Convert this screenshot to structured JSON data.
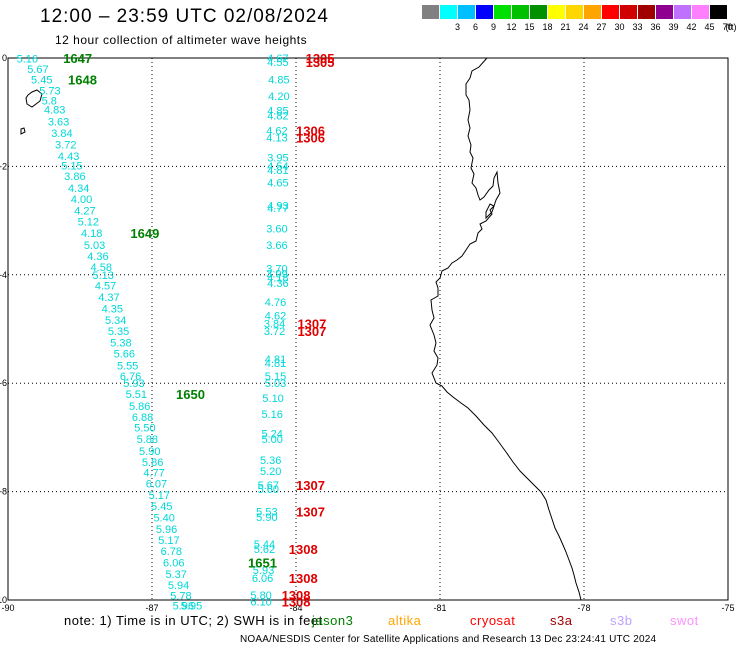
{
  "header": {
    "title": "12:00 – 23:59 UTC 02/08/2024",
    "subtitle": "12 hour collection of altimeter wave heights"
  },
  "colorbar": {
    "unit": "(ft)",
    "bins": [
      {
        "label": "",
        "color": "#808080"
      },
      {
        "label": "3",
        "color": "#00ffff"
      },
      {
        "label": "6",
        "color": "#00bfff"
      },
      {
        "label": "9",
        "color": "#0000ff"
      },
      {
        "label": "12",
        "color": "#00e000"
      },
      {
        "label": "15",
        "color": "#00c000"
      },
      {
        "label": "18",
        "color": "#009000"
      },
      {
        "label": "21",
        "color": "#ffff00"
      },
      {
        "label": "24",
        "color": "#ffd700"
      },
      {
        "label": "27",
        "color": "#ffa500"
      },
      {
        "label": "30",
        "color": "#ff0000"
      },
      {
        "label": "33",
        "color": "#d00000"
      },
      {
        "label": "36",
        "color": "#a00000"
      },
      {
        "label": "39",
        "color": "#900090"
      },
      {
        "label": "42",
        "color": "#c070ff"
      },
      {
        "label": "45",
        "color": "#ff80ff"
      },
      {
        "label": "70",
        "color": "#000000"
      }
    ]
  },
  "map": {
    "lon_ticks": [
      "-90",
      "-87",
      "-84",
      "-81",
      "-78",
      "-75"
    ],
    "lat_ticks": [
      "0",
      "-2",
      "-4",
      "-6",
      "-8",
      "-10"
    ],
    "lon_range": [
      -90,
      -75
    ],
    "lat_range": [
      -10,
      0
    ],
    "colors": {
      "wave_text": "#00d8d8",
      "time_labels_green": "#008000",
      "time_labels_red": "#e00000",
      "coast": "#000000"
    }
  },
  "tracks": [
    {
      "name": "west",
      "points": [
        {
          "lat": -0.01,
          "lon": -89.82,
          "value": "5.16"
        },
        {
          "lat": -0.2,
          "lon": -89.6,
          "value": "5.67"
        },
        {
          "lat": -0.4,
          "lon": -89.52,
          "value": "5.45"
        },
        {
          "lat": -0.6,
          "lon": -89.35,
          "value": "5.73"
        },
        {
          "lat": -0.78,
          "lon": -89.3,
          "value": "5.8"
        },
        {
          "lat": -0.95,
          "lon": -89.25,
          "value": "4.83"
        },
        {
          "lat": -1.17,
          "lon": -89.17,
          "value": "3.63"
        },
        {
          "lat": -1.38,
          "lon": -89.1,
          "value": "3.84"
        },
        {
          "lat": -1.6,
          "lon": -89.02,
          "value": "3.72"
        },
        {
          "lat": -1.81,
          "lon": -88.96,
          "value": "4.43"
        },
        {
          "lat": -1.98,
          "lon": -88.89,
          "value": "5.15"
        },
        {
          "lat": -2.18,
          "lon": -88.83,
          "value": "3.86"
        },
        {
          "lat": -2.4,
          "lon": -88.75,
          "value": "4.34"
        },
        {
          "lat": -2.6,
          "lon": -88.69,
          "value": "4.00"
        },
        {
          "lat": -2.81,
          "lon": -88.62,
          "value": "4.27"
        },
        {
          "lat": -3.02,
          "lon": -88.55,
          "value": "5.12"
        },
        {
          "lat": -3.23,
          "lon": -88.48,
          "value": "4.18"
        },
        {
          "lat": -3.45,
          "lon": -88.42,
          "value": "5.03"
        },
        {
          "lat": -3.65,
          "lon": -88.35,
          "value": "4.36"
        },
        {
          "lat": -3.86,
          "lon": -88.28,
          "value": "4.58"
        },
        {
          "lat": -4.0,
          "lon": -88.24,
          "value": "5.13"
        },
        {
          "lat": -4.2,
          "lon": -88.19,
          "value": "4.57"
        },
        {
          "lat": -4.41,
          "lon": -88.12,
          "value": "4.37"
        },
        {
          "lat": -4.62,
          "lon": -88.05,
          "value": "4.35"
        },
        {
          "lat": -4.83,
          "lon": -87.98,
          "value": "5.34"
        },
        {
          "lat": -5.04,
          "lon": -87.92,
          "value": "5.35"
        },
        {
          "lat": -5.25,
          "lon": -87.87,
          "value": "5.38"
        },
        {
          "lat": -5.45,
          "lon": -87.8,
          "value": "5.66"
        },
        {
          "lat": -5.67,
          "lon": -87.73,
          "value": "5.55"
        },
        {
          "lat": -5.87,
          "lon": -87.67,
          "value": "6.76"
        },
        {
          "lat": -6.0,
          "lon": -87.6,
          "value": "5.93"
        },
        {
          "lat": -6.2,
          "lon": -87.55,
          "value": "5.51"
        },
        {
          "lat": -6.42,
          "lon": -87.48,
          "value": "5.86"
        },
        {
          "lat": -6.62,
          "lon": -87.42,
          "value": "6.88"
        },
        {
          "lat": -6.82,
          "lon": -87.37,
          "value": "5.50"
        },
        {
          "lat": -7.03,
          "lon": -87.32,
          "value": "5.88"
        },
        {
          "lat": -7.25,
          "lon": -87.27,
          "value": "5.90"
        },
        {
          "lat": -7.45,
          "lon": -87.21,
          "value": "5.86"
        },
        {
          "lat": -7.65,
          "lon": -87.18,
          "value": "4.77"
        },
        {
          "lat": -7.85,
          "lon": -87.13,
          "value": "6.07"
        },
        {
          "lat": -8.06,
          "lon": -87.07,
          "value": "5.17"
        },
        {
          "lat": -8.27,
          "lon": -87.02,
          "value": "5.45"
        },
        {
          "lat": -8.48,
          "lon": -86.97,
          "value": "5.40"
        },
        {
          "lat": -8.69,
          "lon": -86.92,
          "value": "5.96"
        },
        {
          "lat": -8.89,
          "lon": -86.87,
          "value": "5.17"
        },
        {
          "lat": -9.1,
          "lon": -86.82,
          "value": "6.78"
        },
        {
          "lat": -9.31,
          "lon": -86.77,
          "value": "6.06"
        },
        {
          "lat": -9.52,
          "lon": -86.72,
          "value": "5.37"
        },
        {
          "lat": -9.72,
          "lon": -86.67,
          "value": "5.94"
        },
        {
          "lat": -9.92,
          "lon": -86.62,
          "value": "5.78"
        },
        {
          "lat": -10.1,
          "lon": -86.57,
          "value": "5.96"
        },
        {
          "lat": -10.1,
          "lon": -86.4,
          "value": "5.95"
        }
      ]
    },
    {
      "name": "east",
      "points": [
        {
          "lat": -0.0,
          "lon": -84.6,
          "value": "4.67"
        },
        {
          "lat": -0.07,
          "lon": -84.6,
          "value": "4.55"
        },
        {
          "lat": -0.4,
          "lon": -84.58,
          "value": "4.85"
        },
        {
          "lat": -0.7,
          "lon": -84.58,
          "value": "4.20"
        },
        {
          "lat": -0.97,
          "lon": -84.6,
          "value": "4.85"
        },
        {
          "lat": -1.06,
          "lon": -84.6,
          "value": "4.82"
        },
        {
          "lat": -1.34,
          "lon": -84.62,
          "value": "4.62"
        },
        {
          "lat": -1.47,
          "lon": -84.62,
          "value": "4.13"
        },
        {
          "lat": -1.84,
          "lon": -84.6,
          "value": "3.95"
        },
        {
          "lat": -1.99,
          "lon": -84.6,
          "value": "4.54"
        },
        {
          "lat": -2.07,
          "lon": -84.6,
          "value": "4.81"
        },
        {
          "lat": -2.3,
          "lon": -84.6,
          "value": "4.65"
        },
        {
          "lat": -2.72,
          "lon": -84.6,
          "value": "4.93"
        },
        {
          "lat": -2.77,
          "lon": -84.6,
          "value": "4.77"
        },
        {
          "lat": -3.15,
          "lon": -84.62,
          "value": "3.60"
        },
        {
          "lat": -3.45,
          "lon": -84.62,
          "value": "3.66"
        },
        {
          "lat": -3.88,
          "lon": -84.62,
          "value": "3.70"
        },
        {
          "lat": -3.98,
          "lon": -84.62,
          "value": "3.99"
        },
        {
          "lat": -4.05,
          "lon": -84.6,
          "value": "4.18"
        },
        {
          "lat": -4.15,
          "lon": -84.6,
          "value": "4.36"
        },
        {
          "lat": -4.5,
          "lon": -84.65,
          "value": "4.76"
        },
        {
          "lat": -4.75,
          "lon": -84.65,
          "value": "4.62"
        },
        {
          "lat": -4.9,
          "lon": -84.67,
          "value": "3.84"
        },
        {
          "lat": -5.04,
          "lon": -84.67,
          "value": "3.72"
        },
        {
          "lat": -5.55,
          "lon": -84.65,
          "value": "4.81"
        },
        {
          "lat": -5.63,
          "lon": -84.65,
          "value": "4.81"
        },
        {
          "lat": -5.87,
          "lon": -84.65,
          "value": "5.15"
        },
        {
          "lat": -6.0,
          "lon": -84.65,
          "value": "5.03"
        },
        {
          "lat": -6.27,
          "lon": -84.7,
          "value": "5.10"
        },
        {
          "lat": -6.57,
          "lon": -84.72,
          "value": "5.16"
        },
        {
          "lat": -6.93,
          "lon": -84.72,
          "value": "5.24"
        },
        {
          "lat": -7.03,
          "lon": -84.72,
          "value": "5.00"
        },
        {
          "lat": -7.42,
          "lon": -84.75,
          "value": "5.36"
        },
        {
          "lat": -7.62,
          "lon": -84.75,
          "value": "5.20"
        },
        {
          "lat": -7.88,
          "lon": -84.8,
          "value": "5.67"
        },
        {
          "lat": -7.95,
          "lon": -84.8,
          "value": "5.60"
        },
        {
          "lat": -8.37,
          "lon": -84.83,
          "value": "5.53"
        },
        {
          "lat": -8.47,
          "lon": -84.83,
          "value": "5.90"
        },
        {
          "lat": -8.97,
          "lon": -84.88,
          "value": "5.44"
        },
        {
          "lat": -9.06,
          "lon": -84.88,
          "value": "5.62"
        },
        {
          "lat": -9.45,
          "lon": -84.9,
          "value": "5.93"
        },
        {
          "lat": -9.59,
          "lon": -84.92,
          "value": "6.06"
        },
        {
          "lat": -9.91,
          "lon": -84.95,
          "value": "5.80"
        },
        {
          "lat": -10.03,
          "lon": -84.95,
          "value": "6.10"
        }
      ]
    }
  ],
  "time_labels": [
    {
      "lat": 0.0,
      "lon": -88.85,
      "text": "1647",
      "color": "green"
    },
    {
      "lat": -0.4,
      "lon": -88.75,
      "text": "1648",
      "color": "green"
    },
    {
      "lat": -3.23,
      "lon": -87.45,
      "text": "1649",
      "color": "green"
    },
    {
      "lat": -6.2,
      "lon": -86.5,
      "text": "1650",
      "color": "green"
    },
    {
      "lat": -9.31,
      "lon": -85.0,
      "text": "1651",
      "color": "green"
    },
    {
      "lat": 0.0,
      "lon": -83.8,
      "text": "1305",
      "color": "red"
    },
    {
      "lat": -0.07,
      "lon": -83.8,
      "text": "1305",
      "color": "red"
    },
    {
      "lat": -1.34,
      "lon": -84.0,
      "text": "1306",
      "color": "red"
    },
    {
      "lat": -1.47,
      "lon": -84.0,
      "text": "1306",
      "color": "red"
    },
    {
      "lat": -4.9,
      "lon": -83.97,
      "text": "1307",
      "color": "red"
    },
    {
      "lat": -5.04,
      "lon": -83.97,
      "text": "1307",
      "color": "red"
    },
    {
      "lat": -7.88,
      "lon": -84.0,
      "text": "1307",
      "color": "red"
    },
    {
      "lat": -8.37,
      "lon": -84.0,
      "text": "1307",
      "color": "red"
    },
    {
      "lat": -9.06,
      "lon": -84.15,
      "text": "1308",
      "color": "red"
    },
    {
      "lat": -9.59,
      "lon": -84.15,
      "text": "1308",
      "color": "red"
    },
    {
      "lat": -9.91,
      "lon": -84.3,
      "text": "1308",
      "color": "red"
    },
    {
      "lat": -10.03,
      "lon": -84.3,
      "text": "1308",
      "color": "red"
    }
  ],
  "footer": {
    "note": "note:  1) Time is in UTC; 2) SWH is in feet",
    "satellites": [
      {
        "name": "jason3",
        "color": "#008000"
      },
      {
        "name": "altika",
        "color": "#ffa500"
      },
      {
        "name": "cryosat",
        "color": "#ff0000"
      },
      {
        "name": "s3a",
        "color": "#a00000"
      },
      {
        "name": "s3b",
        "color": "#c0a0ff"
      },
      {
        "name": "swot",
        "color": "#ff90ff"
      }
    ],
    "credit": "NOAA/NESDIS Center for Satellite Applications and Research    13 Dec 23:24:41 UTC 2024"
  }
}
